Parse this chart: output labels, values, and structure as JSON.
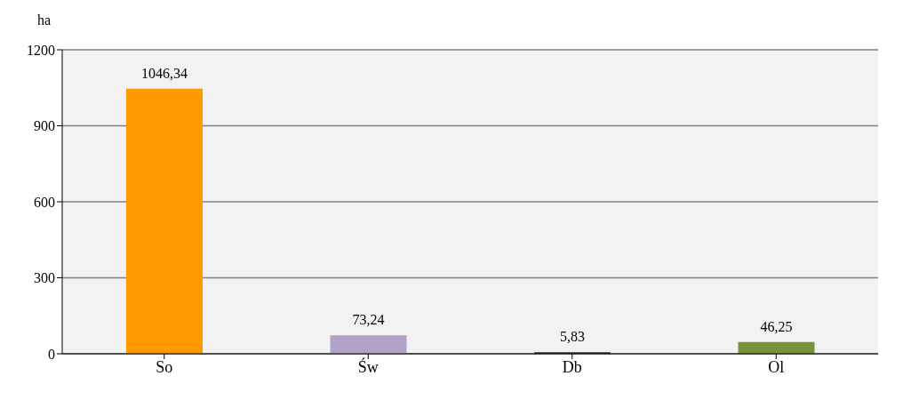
{
  "chart_data": {
    "type": "bar",
    "ylabel": "ha",
    "categories": [
      "So",
      "Św",
      "Db",
      "Ol"
    ],
    "values": [
      1046.34,
      73.24,
      5.83,
      46.25
    ],
    "colors": [
      "#ff9900",
      "#b3a2c7",
      "#333333",
      "#77933c"
    ],
    "value_labels": [
      "1046,34",
      "73,24",
      "5,83",
      "46,25"
    ],
    "ylim": [
      0,
      1200
    ],
    "yticks": [
      0,
      300,
      600,
      900,
      1200
    ],
    "grid": "y"
  }
}
